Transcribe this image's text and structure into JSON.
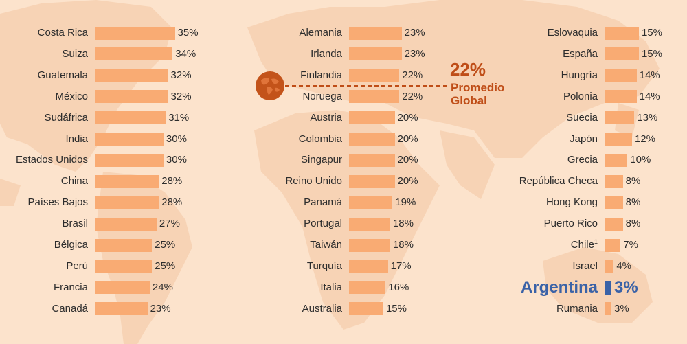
{
  "colors": {
    "background": "#fce3cc",
    "map": "#f7d3b5",
    "bar": "#f9ab73",
    "highlight": "#3a62a7",
    "global": "#bf4d17",
    "text": "#2d2d2d"
  },
  "globe_icon": "globe-icon",
  "global_average": {
    "value": 22,
    "value_label": "22%",
    "label": "Promedio Global"
  },
  "chart_data": {
    "type": "bar",
    "orientation": "horizontal",
    "value_suffix": "%",
    "highlight": "Argentina",
    "columns": [
      {
        "categories": [
          "Costa Rica",
          "Suiza",
          "Guatemala",
          "México",
          "Sudáfrica",
          "India",
          "Estados Unidos",
          "China",
          "Países Bajos",
          "Brasil",
          "Bélgica",
          "Perú",
          "Francia",
          "Canadá"
        ],
        "values": [
          35,
          34,
          32,
          32,
          31,
          30,
          30,
          28,
          28,
          27,
          25,
          25,
          24,
          23
        ]
      },
      {
        "categories": [
          "Alemania",
          "Irlanda",
          "Finlandia",
          "Noruega",
          "Austria",
          "Colombia",
          "Singapur",
          "Reino Unido",
          "Panamá",
          "Portugal",
          "Taiwán",
          "Turquía",
          "Italia",
          "Australia"
        ],
        "values": [
          23,
          23,
          22,
          22,
          20,
          20,
          20,
          20,
          19,
          18,
          18,
          17,
          16,
          15
        ]
      },
      {
        "categories": [
          "Eslovaquia",
          "España",
          "Hungría",
          "Polonia",
          "Suecia",
          "Japón",
          "Grecia",
          "República Checa",
          "Hong Kong",
          "Puerto Rico",
          "Chile",
          "Israel",
          "Argentina",
          "Rumania"
        ],
        "values": [
          15,
          15,
          14,
          14,
          13,
          12,
          10,
          8,
          8,
          8,
          7,
          4,
          3,
          3
        ],
        "footnotes": {
          "Chile": "1"
        }
      }
    ]
  }
}
